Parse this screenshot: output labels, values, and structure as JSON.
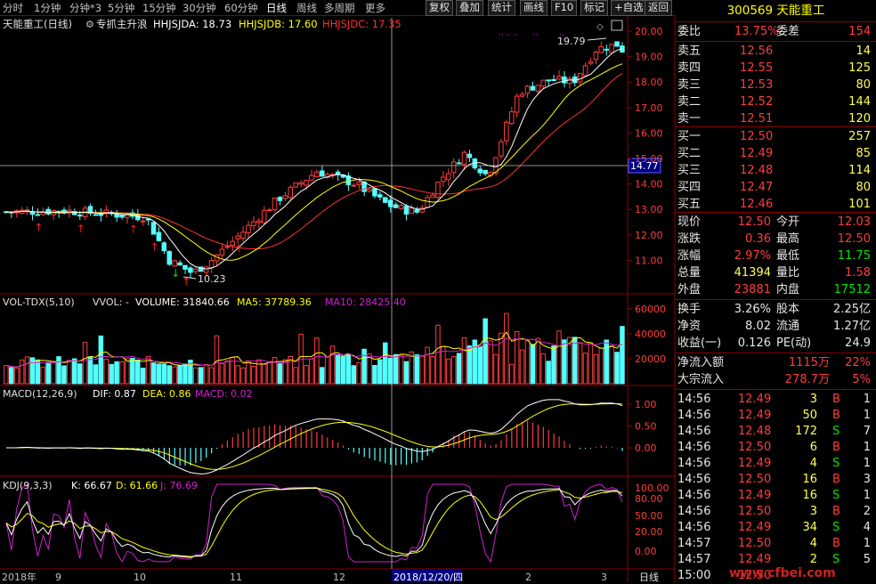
{
  "toolbar": {
    "timeframes": [
      "分时",
      "1分钟",
      "分钟*3",
      "5分钟",
      "15分钟",
      "30分钟",
      "60分钟",
      "日线",
      "周线",
      "多周期",
      "更多"
    ],
    "selected": "日线",
    "buttons": [
      "复权",
      "叠加",
      "统计",
      "画线",
      "F10",
      "标记",
      "+自选",
      "返回"
    ]
  },
  "chart": {
    "main_title": "天能重工(日线)",
    "indicator_name": "专抓主升浪",
    "ind_a": "HHJSJDA: 18.73",
    "ind_b": "HHJSJDB: 17.60",
    "ind_c": "HHJSJDC: 17.35",
    "price_ticks": [
      "20.00",
      "19.00",
      "18.00",
      "17.00",
      "16.00",
      "15.00",
      "14.00",
      "13.00",
      "12.00",
      "11.00"
    ],
    "crosshair_price": "14.77",
    "high_label": "19.79",
    "low_label": "10.23",
    "vol_title": "VOL-TDX(5,10)",
    "vol_vwol": "VVOL: -",
    "vol_volume": "VOLUME: 31840.66",
    "vol_ma5": "MA5: 37789.36",
    "vol_ma10": "MA10: 28425.40",
    "vol_ticks": [
      "60000",
      "40000",
      "20000"
    ],
    "macd_title": "MACD(12,26,9)",
    "macd_dif": "DIF: 0.87",
    "macd_dea": "DEA: 0.86",
    "macd_val": "MACD: 0.02",
    "macd_ticks": [
      "1.00",
      "0.50",
      "0.00"
    ],
    "kdj_title": "KDJ(9,3,3)",
    "kdj_k": "K: 66.67",
    "kdj_d": "D: 61.66",
    "kdj_j": "J: 76.69",
    "kdj_ticks": [
      "100.00",
      "80.00",
      "50.00",
      "20.00",
      "0.00"
    ],
    "date_axis": [
      "2018年",
      "9",
      "10",
      "11",
      "12",
      "2018/12/20/四",
      "2",
      "3"
    ],
    "period_label": "日线"
  },
  "quote": {
    "code_name": "300569 天能重工",
    "weibi_label": "委比",
    "weibi_value": "13.75%",
    "weicha_label": "委差",
    "weicha_value": "154",
    "asks": [
      {
        "label": "卖五",
        "price": "12.56",
        "vol": "14"
      },
      {
        "label": "卖四",
        "price": "12.55",
        "vol": "125"
      },
      {
        "label": "卖三",
        "price": "12.53",
        "vol": "80"
      },
      {
        "label": "卖二",
        "price": "12.52",
        "vol": "144"
      },
      {
        "label": "卖一",
        "price": "12.51",
        "vol": "120"
      }
    ],
    "bids": [
      {
        "label": "买一",
        "price": "12.50",
        "vol": "257"
      },
      {
        "label": "买二",
        "price": "12.49",
        "vol": "85"
      },
      {
        "label": "买三",
        "price": "12.48",
        "vol": "114"
      },
      {
        "label": "买四",
        "price": "12.47",
        "vol": "80"
      },
      {
        "label": "买五",
        "price": "12.46",
        "vol": "101"
      }
    ],
    "stats": [
      {
        "l1": "现价",
        "v1": "12.50",
        "l2": "今开",
        "v2": "12.03",
        "c1": "red",
        "c2": "red"
      },
      {
        "l1": "涨跌",
        "v1": "0.36",
        "l2": "最高",
        "v2": "12.50",
        "c1": "red",
        "c2": "red"
      },
      {
        "l1": "涨幅",
        "v1": "2.97%",
        "l2": "最低",
        "v2": "11.75",
        "c1": "red",
        "c2": "grn"
      },
      {
        "l1": "总量",
        "v1": "41394",
        "l2": "量比",
        "v2": "1.58",
        "c1": "yel",
        "c2": "red"
      },
      {
        "l1": "外盘",
        "v1": "23881",
        "l2": "内盘",
        "v2": "17512",
        "c1": "red",
        "c2": "grn"
      }
    ],
    "stats2": [
      {
        "l1": "换手",
        "v1": "3.26%",
        "l2": "股本",
        "v2": "2.25亿"
      },
      {
        "l1": "净资",
        "v1": "8.02",
        "l2": "流通",
        "v2": "1.27亿"
      },
      {
        "l1": "收益(一)",
        "v1": "0.126",
        "l2": "PE(动)",
        "v2": "24.9"
      }
    ],
    "flow": [
      {
        "label": "净流入额",
        "value": "1115万",
        "pct": "22%"
      },
      {
        "label": "大宗流入",
        "value": "278.7万",
        "pct": "5%"
      }
    ],
    "ticks": [
      {
        "t": "14:56",
        "p": "12.49",
        "v": "3",
        "s": "B",
        "n": "1"
      },
      {
        "t": "14:56",
        "p": "12.49",
        "v": "50",
        "s": "B",
        "n": "1"
      },
      {
        "t": "14:56",
        "p": "12.48",
        "v": "172",
        "s": "S",
        "n": "7"
      },
      {
        "t": "14:56",
        "p": "12.50",
        "v": "6",
        "s": "B",
        "n": "1"
      },
      {
        "t": "14:56",
        "p": "12.49",
        "v": "4",
        "s": "S",
        "n": "1"
      },
      {
        "t": "14:56",
        "p": "12.50",
        "v": "16",
        "s": "B",
        "n": "3"
      },
      {
        "t": "14:56",
        "p": "12.49",
        "v": "16",
        "s": "S",
        "n": "1"
      },
      {
        "t": "14:56",
        "p": "12.50",
        "v": "3",
        "s": "B",
        "n": "2"
      },
      {
        "t": "14:56",
        "p": "12.49",
        "v": "34",
        "s": "S",
        "n": "4"
      },
      {
        "t": "14:57",
        "p": "12.50",
        "v": "4",
        "s": "B",
        "n": "1"
      },
      {
        "t": "14:57",
        "p": "12.49",
        "v": "2",
        "s": "S",
        "n": "5"
      },
      {
        "t": "15:00",
        "p": "12.50",
        "v": "",
        "s": "",
        "n": ""
      }
    ],
    "watermark": "www.cfbei.com"
  },
  "colors": {
    "up": "#ff3c3c",
    "down": "#54ffff",
    "frame": "#8b0000",
    "ma_white": "#ffffff",
    "ma_yellow": "#ffff00",
    "ma_red": "#ff3030",
    "purple": "#d020d0"
  }
}
